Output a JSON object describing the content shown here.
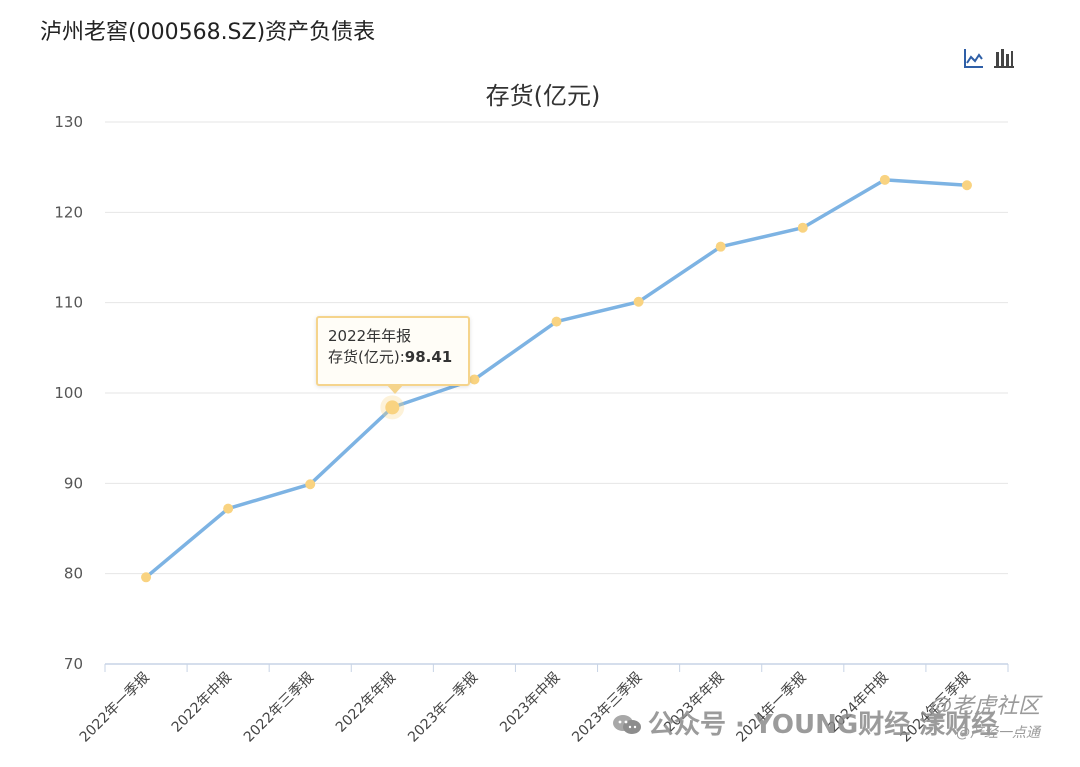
{
  "page_title": "泸州老窖(000568.SZ)资产负债表",
  "toolbar": {
    "line_icon": "line-chart-icon",
    "bar_icon": "bar-chart-icon"
  },
  "chart_data": {
    "type": "line",
    "title": "存货(亿元)",
    "categories": [
      "2022年一季报",
      "2022年中报",
      "2022年三季报",
      "2022年年报",
      "2023年一季报",
      "2023年中报",
      "2023年三季报",
      "2023年年报",
      "2024年一季报",
      "2024年中报",
      "2024年三季报"
    ],
    "series": [
      {
        "name": "存货(亿元)",
        "values": [
          79.6,
          87.2,
          89.9,
          98.41,
          101.5,
          107.9,
          110.1,
          116.2,
          118.3,
          123.6,
          123.0
        ]
      }
    ],
    "ylim": [
      70,
      130
    ],
    "yticks": [
      70,
      80,
      90,
      100,
      110,
      120,
      130
    ],
    "grid": true,
    "colors": {
      "line": "#7db3e3",
      "marker": "#f9d381",
      "grid": "#e6e6e6",
      "axis": "#c7d3e5"
    }
  },
  "tooltip": {
    "title": "2022年年报",
    "label": "存货(亿元):",
    "value": "98.41"
  },
  "watermarks": {
    "wechat": "公众号 · YOUNG财经 漾财经",
    "community_line1": "@老虎社区",
    "community_line2": "@产经一点通"
  }
}
